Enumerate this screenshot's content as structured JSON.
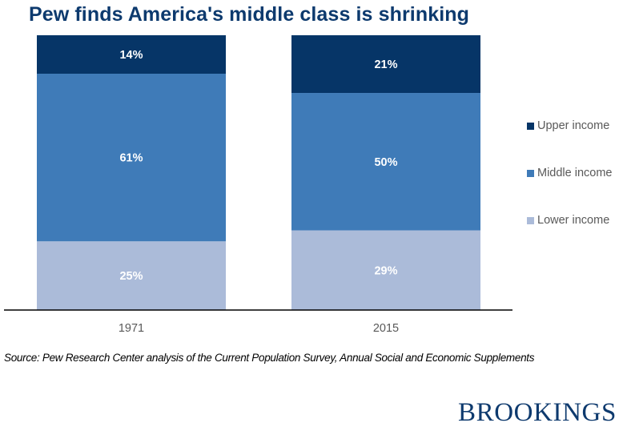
{
  "chart_data": {
    "type": "bar",
    "stacked": true,
    "title": "Pew finds America's middle class is shrinking",
    "xlabel": "",
    "ylabel": "",
    "ylim": [
      0,
      100
    ],
    "grid": false,
    "legend_position": "right",
    "categories": [
      "1971",
      "2015"
    ],
    "series": [
      {
        "name": "Lower income",
        "values": [
          25,
          29
        ],
        "color": "#abbbd9"
      },
      {
        "name": "Middle income",
        "values": [
          61,
          50
        ],
        "color": "#3f7bb8"
      },
      {
        "name": "Upper income",
        "values": [
          14,
          21
        ],
        "color": "#063567"
      }
    ],
    "value_suffix": "%"
  },
  "legend": [
    {
      "label": "Upper income",
      "color": "#063567"
    },
    {
      "label": "Middle income",
      "color": "#3f7bb8"
    },
    {
      "label": "Lower income",
      "color": "#abbbd9"
    }
  ],
  "source": "Source: Pew Research Center analysis of the Current Population Survey, Annual Social and Economic Supplements",
  "logo": "BROOKINGS"
}
